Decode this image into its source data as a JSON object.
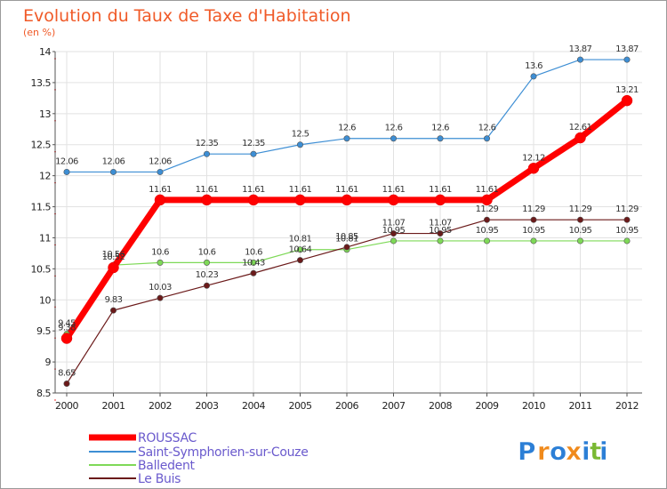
{
  "chart_data": {
    "type": "line",
    "title": "Evolution du Taux de Taxe d'Habitation",
    "subtitle": "(en %)",
    "x": [
      "2000",
      "2001",
      "2002",
      "2003",
      "2004",
      "2005",
      "2006",
      "2007",
      "2008",
      "2009",
      "2010",
      "2011",
      "2012"
    ],
    "y_ticks": [
      "8.5",
      "9",
      "9.5",
      "10",
      "10.5",
      "11",
      "11.5",
      "12",
      "12.5",
      "13",
      "13.5",
      "14"
    ],
    "ylim": [
      8.5,
      14
    ],
    "series": [
      {
        "name": "ROUSSAC",
        "color": "#ff0000",
        "values": [
          9.38,
          10.52,
          11.61,
          11.61,
          11.61,
          11.61,
          11.61,
          11.61,
          11.61,
          11.61,
          12.12,
          12.61,
          13.21
        ],
        "labels": [
          "9.38",
          "10.52",
          "11.61",
          "11.61",
          "11.61",
          "11.61",
          "11.61",
          "11.61",
          "11.61",
          "11.61",
          "12.12",
          "12.61",
          "13.21"
        ]
      },
      {
        "name": "Saint-Symphorien-sur-Couze",
        "color": "#3d8ed4",
        "values": [
          12.06,
          12.06,
          12.06,
          12.35,
          12.35,
          12.5,
          12.6,
          12.6,
          12.6,
          12.6,
          13.6,
          13.87,
          13.87
        ],
        "labels": [
          "12.06",
          "12.06",
          "12.06",
          "12.35",
          "12.35",
          "12.5",
          "12.6",
          "12.6",
          "12.6",
          "12.6",
          "13.6",
          "13.87",
          "13.87"
        ]
      },
      {
        "name": "Balledent",
        "color": "#7ed957",
        "values": [
          9.45,
          10.56,
          10.6,
          10.6,
          10.6,
          10.81,
          10.81,
          10.95,
          10.95,
          10.95,
          10.95,
          10.95,
          10.95
        ],
        "labels": [
          "9.45",
          "10.56",
          "10.6",
          "10.6",
          "10.6",
          "10.81",
          "10.81",
          "10.95",
          "10.95",
          "10.95",
          "10.95",
          "10.95",
          "10.95"
        ]
      },
      {
        "name": "Le Buis",
        "color": "#6b1a1a",
        "values": [
          8.65,
          9.83,
          10.03,
          10.23,
          10.43,
          10.64,
          10.85,
          11.07,
          11.07,
          11.29,
          11.29,
          11.29,
          11.29
        ],
        "labels": [
          "8.65",
          "9.83",
          "10.03",
          "10.23",
          "10.43",
          "10.64",
          "10.85",
          "11.07",
          "11.07",
          "11.29",
          "11.29",
          "11.29",
          "11.29"
        ]
      }
    ]
  },
  "logo": {
    "text": "Proxiti",
    "letters": [
      "P",
      "r",
      "o",
      "x",
      "i",
      "t",
      "i"
    ],
    "colors": [
      "#2c7fd6",
      "#f08a1c",
      "#2c7fd6",
      "#f08a1c",
      "#2c7fd6",
      "#7ab933",
      "#2c7fd6"
    ]
  }
}
